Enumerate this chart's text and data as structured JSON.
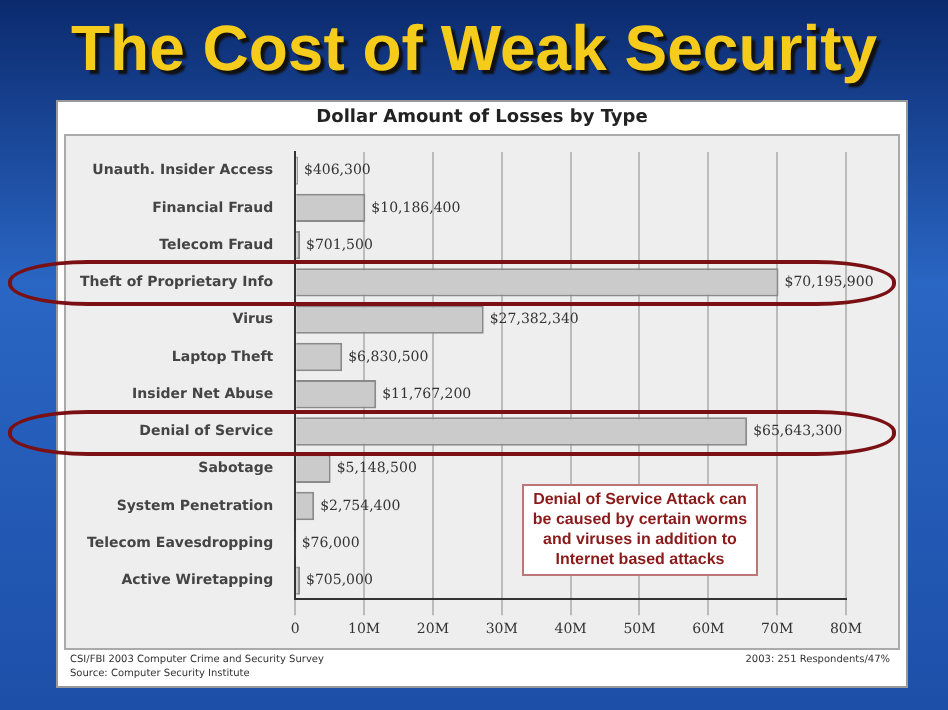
{
  "chart_data": {
    "type": "bar",
    "orientation": "horizontal",
    "title": "The Cost of Weak Security",
    "subtitle": "Dollar Amount of Losses by Type",
    "categories": [
      "Unauth. Insider Access",
      "Financial Fraud",
      "Telecom Fraud",
      "Theft of Proprietary Info",
      "Virus",
      "Laptop Theft",
      "Insider Net Abuse",
      "Denial of Service",
      "Sabotage",
      "System Penetration",
      "Telecom Eavesdropping",
      "Active Wiretapping"
    ],
    "values": [
      406300,
      10186400,
      701500,
      70195900,
      27382340,
      6830500,
      11767200,
      65643300,
      5148500,
      2754400,
      76000,
      705000
    ],
    "value_labels": [
      "$406,300",
      "$10,186,400",
      "$701,500",
      "$70,195,900",
      "$27,382,340",
      "$6,830,500",
      "$11,767,200",
      "$65,643,300",
      "$5,148,500",
      "$2,754,400",
      "$76,000",
      "$705,000"
    ],
    "color": "#cbcbcb",
    "xlim": [
      0,
      80000000
    ],
    "xticks": [
      0,
      {
        "value": 10000000,
        "label": "10M"
      },
      {
        "value": 20000000,
        "label": "20M"
      },
      {
        "value": 30000000,
        "label": "30M"
      },
      {
        "value": 40000000,
        "label": "40M"
      },
      {
        "value": 50000000,
        "label": "50M"
      },
      {
        "value": 60000000,
        "label": "60M"
      },
      {
        "value": 70000000,
        "label": "70M"
      },
      {
        "value": 80000000,
        "label": "80M"
      }
    ],
    "grid": "x",
    "legend": false,
    "annotations": [
      "Denial of Service Attack can be caused by certain worms and viruses in addition to Internet based attacks",
      "CSI/FBI 2003 Computer Crime and Security Survey\nSource: Computer Security Institute",
      "2003: 251 Respondents/47%"
    ]
  }
}
